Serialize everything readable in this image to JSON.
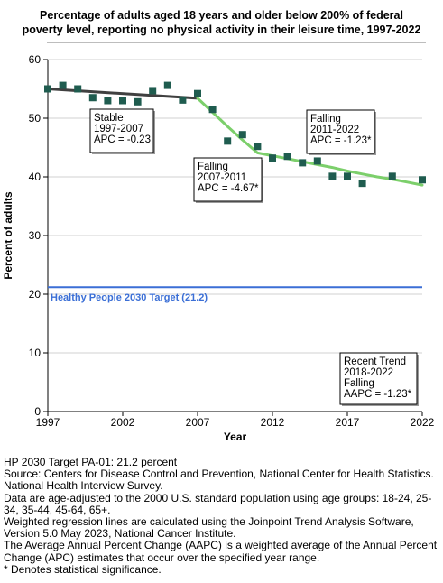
{
  "chart_data": {
    "type": "scatter",
    "title": "Percentage of adults aged 18 years and older below 200% of federal poverty level, reporting no physical activity in their leisure time, 1997-2022",
    "title_lines": [
      "Percentage of adults aged 18 years and older below 200% of federal",
      "poverty level, reporting no physical activity in their leisure time, 1997-2022"
    ],
    "xlabel": "Year",
    "ylabel": "Percent of adults",
    "xlim": [
      1997,
      2022
    ],
    "ylim": [
      0,
      60
    ],
    "x_ticks": [
      1997,
      2002,
      2007,
      2012,
      2017,
      2022
    ],
    "y_ticks": [
      0,
      10,
      20,
      30,
      40,
      50,
      60
    ],
    "grid": "horizontal",
    "points": [
      {
        "x": 1997,
        "y": 55.0
      },
      {
        "x": 1998,
        "y": 55.6
      },
      {
        "x": 1999,
        "y": 55.0
      },
      {
        "x": 2000,
        "y": 53.5
      },
      {
        "x": 2001,
        "y": 53.0
      },
      {
        "x": 2002,
        "y": 53.0
      },
      {
        "x": 2003,
        "y": 52.8
      },
      {
        "x": 2004,
        "y": 54.7
      },
      {
        "x": 2005,
        "y": 55.6
      },
      {
        "x": 2006,
        "y": 53.1
      },
      {
        "x": 2007,
        "y": 54.2
      },
      {
        "x": 2008,
        "y": 51.5
      },
      {
        "x": 2009,
        "y": 46.1
      },
      {
        "x": 2010,
        "y": 47.2
      },
      {
        "x": 2011,
        "y": 45.2
      },
      {
        "x": 2012,
        "y": 43.2
      },
      {
        "x": 2013,
        "y": 43.5
      },
      {
        "x": 2014,
        "y": 42.4
      },
      {
        "x": 2015,
        "y": 42.7
      },
      {
        "x": 2016,
        "y": 40.1
      },
      {
        "x": 2017,
        "y": 40.1
      },
      {
        "x": 2018,
        "y": 38.9
      },
      {
        "x": 2020,
        "y": 40.1
      },
      {
        "x": 2022,
        "y": 39.5
      }
    ],
    "trend_segments": [
      {
        "color": "#404040",
        "points": [
          [
            1997,
            55.0
          ],
          [
            2007,
            53.4
          ]
        ]
      },
      {
        "color": "#7ccf6b",
        "points": [
          [
            2007,
            53.4
          ],
          [
            2008,
            51.0
          ],
          [
            2009,
            48.6
          ],
          [
            2010,
            46.3
          ],
          [
            2011,
            44.1
          ],
          [
            2012,
            43.6
          ],
          [
            2013,
            43.1
          ],
          [
            2014,
            42.6
          ],
          [
            2015,
            42.1
          ],
          [
            2016,
            41.6
          ],
          [
            2017,
            41.0
          ],
          [
            2018,
            40.5
          ],
          [
            2019,
            40.0
          ],
          [
            2020,
            39.6
          ],
          [
            2021,
            39.1
          ],
          [
            2022,
            38.6
          ]
        ]
      }
    ],
    "target": {
      "value": 21.2,
      "label": "Healthy People 2030 Target (21.2)",
      "color": "#3b6fd6"
    },
    "annotations": [
      {
        "lines": [
          "Stable",
          "1997-2007",
          "APC = -0.23"
        ]
      },
      {
        "lines": [
          "Falling",
          "2007-2011",
          "APC = -4.67*"
        ]
      },
      {
        "lines": [
          "Falling",
          "2011-2022",
          "APC = -1.23*"
        ]
      },
      {
        "lines": [
          "Recent Trend",
          "2018-2022",
          "Falling",
          "AAPC = -1.23*"
        ]
      }
    ],
    "marker_color": "#1f5c4f"
  },
  "notes": [
    "HP 2030 Target PA-01: 21.2 percent",
    "Source: Centers for Disease Control and Prevention, National Center for Health Statistics. National Health Interview Survey.",
    "Data are age-adjusted to the 2000 U.S. standard population using age groups: 18-24, 25-34, 35-44, 45-64, 65+.",
    "Weighted regression lines are calculated using the Joinpoint Trend Analysis Software, Version 5.0 May 2023, National Cancer Institute.",
    "The Average Annual Percent Change (AAPC) is a weighted average of the Annual Percent Change (APC) estimates that occur over the specified year range.",
    "* Denotes statistical significance."
  ]
}
